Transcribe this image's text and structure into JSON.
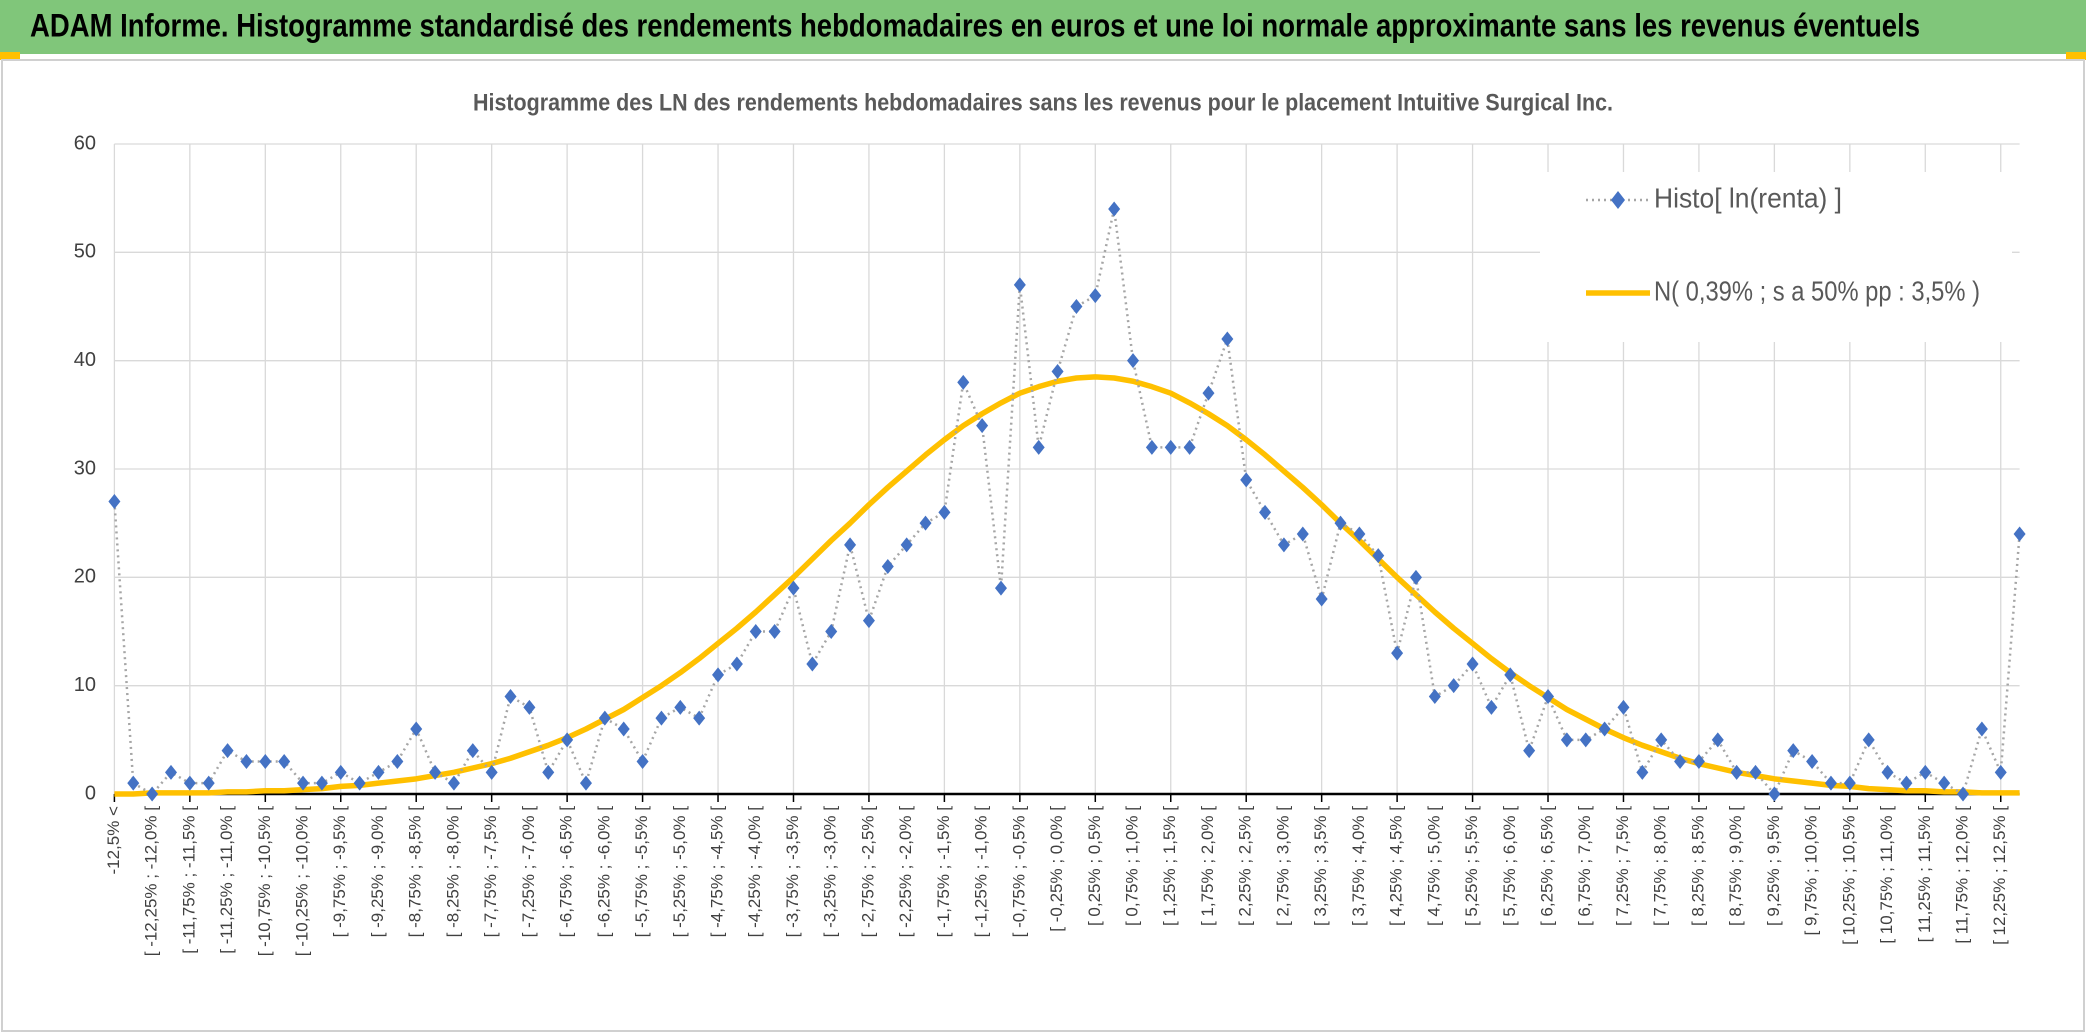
{
  "header": "ADAM Informe. Histogramme standardisé des rendements hebdomadaires en euros et une loi normale approximante sans les revenus éventuels",
  "chart_data": {
    "type": "line",
    "title": "Histogramme des LN des rendements hebdomadaires sans les revenus pour le placement Intuitive Surgical Inc.",
    "categories": [
      "-12,5% <",
      null,
      "[ -12,25% ; -12,0% [",
      null,
      "[ -11,75% ; -11,5% [",
      null,
      "[ -11,25% ; -11,0% [",
      null,
      "[ -10,75% ; -10,5% [",
      null,
      "[ -10,25% ; -10,0% [",
      null,
      "[ -9,75% ; -9,5% [",
      null,
      "[ -9,25% ; -9,0% [",
      null,
      "[ -8,75% ; -8,5% [",
      null,
      "[ -8,25% ; -8,0% [",
      null,
      "[ -7,75% ; -7,5% [",
      null,
      "[ -7,25% ; -7,0% [",
      null,
      "[ -6,75% ; -6,5% [",
      null,
      "[ -6,25% ; -6,0% [",
      null,
      "[ -5,75% ; -5,5% [",
      null,
      "[ -5,25% ; -5,0% [",
      null,
      "[ -4,75% ; -4,5% [",
      null,
      "[ -4,25% ; -4,0% [",
      null,
      "[ -3,75% ; -3,5% [",
      null,
      "[ -3,25% ; -3,0% [",
      null,
      "[ -2,75% ; -2,5% [",
      null,
      "[ -2,25% ; -2,0% [",
      null,
      "[ -1,75% ; -1,5% [",
      null,
      "[ -1,25% ; -1,0% [",
      null,
      "[ -0,75% ; -0,5% [",
      null,
      "[ -0,25% ; 0,0% [",
      null,
      "[ 0,25% ; 0,5% [",
      null,
      "[ 0,75% ; 1,0% [",
      null,
      "[ 1,25% ; 1,5% [",
      null,
      "[ 1,75% ; 2,0% [",
      null,
      "[ 2,25% ; 2,5% [",
      null,
      "[ 2,75% ; 3,0% [",
      null,
      "[ 3,25% ; 3,5% [",
      null,
      "[ 3,75% ; 4,0% [",
      null,
      "[ 4,25% ; 4,5% [",
      null,
      "[ 4,75% ; 5,0% [",
      null,
      "[ 5,25% ; 5,5% [",
      null,
      "[ 5,75% ; 6,0% [",
      null,
      "[ 6,25% ; 6,5% [",
      null,
      "[ 6,75% ; 7,0% [",
      null,
      "[ 7,25% ; 7,5% [",
      null,
      "[ 7,75% ; 8,0% [",
      null,
      "[ 8,25% ; 8,5% [",
      null,
      "[ 8,75% ; 9,0% [",
      null,
      "[ 9,25% ; 9,5% [",
      null,
      "[ 9,75% ; 10,0% [",
      null,
      "[ 10,25% ; 10,5% [",
      null,
      "[ 10,75% ; 11,0% [",
      null,
      "[ 11,25% ; 11,5% [",
      null,
      "[ 11,75% ; 12,0% [",
      null,
      "[ 12,25% ; 12,5% [",
      null
    ],
    "series": [
      {
        "name": "Histo[ ln(renta) ]",
        "color": "#4472c4",
        "line_color": "#a6a6a6",
        "marker": "diamond",
        "values": [
          27,
          1,
          0,
          2,
          1,
          1,
          4,
          3,
          3,
          3,
          1,
          1,
          2,
          1,
          2,
          3,
          6,
          2,
          1,
          4,
          2,
          9,
          8,
          2,
          5,
          1,
          7,
          6,
          3,
          7,
          8,
          7,
          11,
          12,
          15,
          15,
          19,
          12,
          15,
          23,
          16,
          21,
          23,
          25,
          26,
          38,
          34,
          19,
          47,
          32,
          39,
          45,
          46,
          54,
          40,
          32,
          32,
          32,
          37,
          42,
          29,
          26,
          23,
          24,
          18,
          25,
          24,
          22,
          13,
          20,
          9,
          10,
          12,
          8,
          11,
          4,
          9,
          5,
          5,
          6,
          8,
          2,
          5,
          3,
          3,
          5,
          2,
          2,
          0,
          4,
          3,
          1,
          1,
          5,
          2,
          1,
          2,
          1,
          0,
          6,
          2,
          24
        ]
      },
      {
        "name": "N( 0,39% ; s a 50% pp : 3,5% )",
        "color": "#ffc000",
        "marker": "none",
        "values": [
          0.0,
          0.0,
          0.1,
          0.1,
          0.1,
          0.1,
          0.2,
          0.2,
          0.3,
          0.3,
          0.4,
          0.5,
          0.7,
          0.8,
          1.0,
          1.2,
          1.4,
          1.7,
          2.0,
          2.4,
          2.8,
          3.3,
          3.9,
          4.5,
          5.2,
          6.0,
          6.9,
          7.8,
          8.9,
          10.0,
          11.2,
          12.5,
          13.9,
          15.3,
          16.8,
          18.4,
          20.0,
          21.7,
          23.4,
          25.0,
          26.7,
          28.3,
          29.8,
          31.3,
          32.7,
          34.0,
          35.1,
          36.1,
          37.0,
          37.6,
          38.1,
          38.4,
          38.5,
          38.4,
          38.1,
          37.6,
          37.0,
          36.1,
          35.1,
          34.0,
          32.7,
          31.3,
          29.8,
          28.3,
          26.7,
          25.0,
          23.4,
          21.7,
          20.0,
          18.4,
          16.8,
          15.3,
          13.9,
          12.5,
          11.2,
          10.0,
          8.9,
          7.8,
          6.9,
          6.0,
          5.2,
          4.5,
          3.9,
          3.3,
          2.8,
          2.4,
          2.0,
          1.7,
          1.4,
          1.2,
          1.0,
          0.8,
          0.7,
          0.5,
          0.4,
          0.3,
          0.3,
          0.2,
          0.2,
          0.1,
          0.1,
          0.1
        ]
      }
    ],
    "ylim": [
      0,
      60
    ],
    "yticks": [
      0,
      10,
      20,
      30,
      40,
      50,
      60
    ],
    "grid": true,
    "legend": "top-right"
  }
}
